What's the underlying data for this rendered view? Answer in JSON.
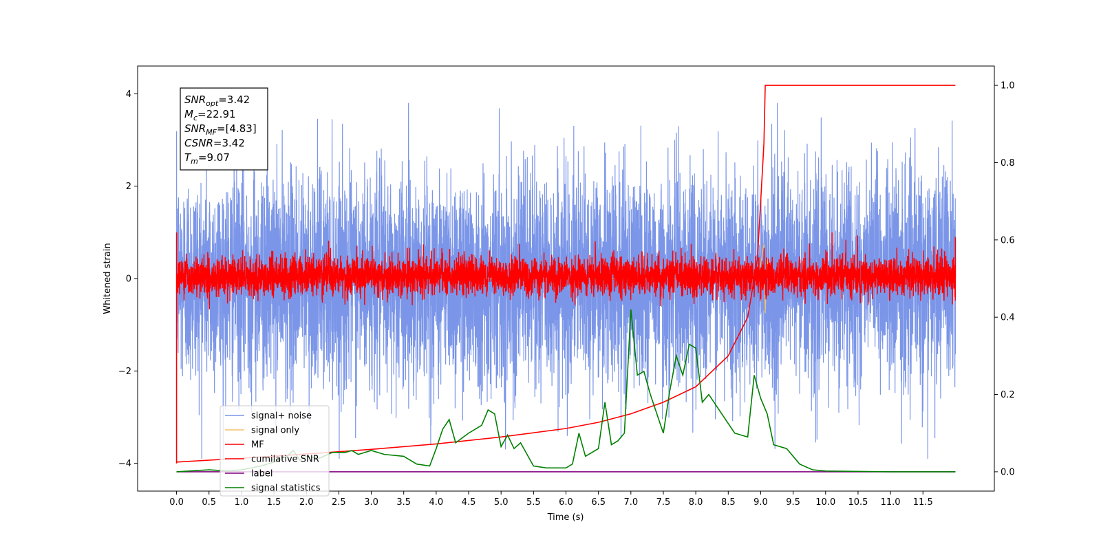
{
  "chart_data": {
    "type": "line",
    "xlabel": "Time (s)",
    "ylabel": "Whitened strain",
    "xlim": [
      -0.6,
      12.6
    ],
    "ylim": [
      -4.6,
      4.6
    ],
    "y2lim": [
      -0.05,
      1.05
    ],
    "x_ticks": [
      0.0,
      0.5,
      1.0,
      1.5,
      2.0,
      2.5,
      3.0,
      3.5,
      4.0,
      4.5,
      5.0,
      5.5,
      6.0,
      6.5,
      7.0,
      7.5,
      8.0,
      8.5,
      9.0,
      9.5,
      10.0,
      10.5,
      11.0,
      11.5
    ],
    "x_tick_labels": [
      "0.0",
      "0.5",
      "1.0",
      "1.5",
      "2.0",
      "2.5",
      "3.0",
      "3.5",
      "4.0",
      "4.5",
      "5.0",
      "5.5",
      "6.0",
      "6.5",
      "7.0",
      "7.5",
      "8.0",
      "8.5",
      "9.0",
      "9.5",
      "10.0",
      "10.5",
      "11.0",
      "11.5"
    ],
    "y_ticks": [
      -4,
      -2,
      0,
      2,
      4
    ],
    "y_tick_labels": [
      "−4",
      "−2",
      "0",
      "2",
      "4"
    ],
    "y2_ticks": [
      0.0,
      0.2,
      0.4,
      0.6,
      0.8,
      1.0
    ],
    "y2_tick_labels": [
      "0.0",
      "0.2",
      "0.4",
      "0.6",
      "0.8",
      "1.0"
    ],
    "legend_placement": "lower-left",
    "grid": false,
    "x_range_data": [
      0.0,
      12.0
    ],
    "noise_series": {
      "name": "signal+ noise",
      "color": "#7b96e8",
      "approx_amplitude_range": [
        -3.9,
        3.8
      ],
      "typical_band": [
        -2.4,
        2.4
      ]
    },
    "signal_only": {
      "name": "signal only",
      "color": "#f5c26b",
      "points": [
        [
          0.0,
          0.0
        ],
        [
          8.9,
          0.0
        ],
        [
          9.0,
          0.3
        ],
        [
          9.05,
          0.75
        ],
        [
          9.07,
          -0.75
        ],
        [
          9.1,
          0.4
        ],
        [
          9.15,
          0.0
        ],
        [
          12.0,
          0.0
        ]
      ]
    },
    "mf_series": {
      "name": "MF",
      "color": "#ff0000",
      "band": [
        -0.35,
        0.45
      ],
      "spikes": [
        [
          0.0,
          1.0
        ],
        [
          0.0,
          -4.0
        ],
        [
          10.1,
          1.0
        ],
        [
          12.0,
          0.9
        ]
      ]
    },
    "cumulative_snr": {
      "name": "cumilative SNR",
      "color": "#ff0000",
      "axis": "right",
      "points": [
        [
          0.0,
          0.025
        ],
        [
          1.0,
          0.035
        ],
        [
          2.0,
          0.046
        ],
        [
          3.0,
          0.058
        ],
        [
          4.0,
          0.072
        ],
        [
          5.0,
          0.09
        ],
        [
          6.0,
          0.112
        ],
        [
          6.5,
          0.128
        ],
        [
          7.0,
          0.15
        ],
        [
          7.5,
          0.18
        ],
        [
          8.0,
          0.22
        ],
        [
          8.5,
          0.3
        ],
        [
          8.8,
          0.4
        ],
        [
          8.95,
          0.55
        ],
        [
          9.0,
          0.7
        ],
        [
          9.05,
          0.85
        ],
        [
          9.07,
          1.0
        ],
        [
          12.0,
          1.0
        ]
      ]
    },
    "label_series": {
      "name": "label",
      "color": "#800080",
      "axis": "right",
      "points": [
        [
          0.0,
          0.0
        ],
        [
          12.0,
          0.0
        ]
      ]
    },
    "signal_statistics": {
      "name": "signal statistics",
      "color": "#008000",
      "axis": "right",
      "points": [
        [
          0.0,
          0.0
        ],
        [
          0.3,
          0.003
        ],
        [
          0.5,
          0.005
        ],
        [
          0.8,
          0.002
        ],
        [
          1.0,
          0.005
        ],
        [
          1.3,
          0.015
        ],
        [
          1.5,
          0.025
        ],
        [
          1.7,
          0.04
        ],
        [
          1.8,
          0.055
        ],
        [
          1.9,
          0.03
        ],
        [
          2.0,
          0.04
        ],
        [
          2.2,
          0.035
        ],
        [
          2.4,
          0.05
        ],
        [
          2.6,
          0.05
        ],
        [
          2.7,
          0.055
        ],
        [
          2.8,
          0.045
        ],
        [
          3.0,
          0.055
        ],
        [
          3.2,
          0.045
        ],
        [
          3.5,
          0.04
        ],
        [
          3.7,
          0.02
        ],
        [
          3.9,
          0.015
        ],
        [
          4.0,
          0.06
        ],
        [
          4.1,
          0.11
        ],
        [
          4.2,
          0.135
        ],
        [
          4.3,
          0.075
        ],
        [
          4.5,
          0.1
        ],
        [
          4.7,
          0.12
        ],
        [
          4.8,
          0.16
        ],
        [
          4.9,
          0.15
        ],
        [
          5.0,
          0.065
        ],
        [
          5.1,
          0.095
        ],
        [
          5.2,
          0.06
        ],
        [
          5.3,
          0.075
        ],
        [
          5.5,
          0.015
        ],
        [
          5.7,
          0.01
        ],
        [
          6.0,
          0.01
        ],
        [
          6.1,
          0.02
        ],
        [
          6.2,
          0.1
        ],
        [
          6.3,
          0.04
        ],
        [
          6.5,
          0.06
        ],
        [
          6.6,
          0.18
        ],
        [
          6.7,
          0.07
        ],
        [
          6.8,
          0.08
        ],
        [
          6.9,
          0.1
        ],
        [
          7.0,
          0.42
        ],
        [
          7.1,
          0.25
        ],
        [
          7.2,
          0.26
        ],
        [
          7.3,
          0.2
        ],
        [
          7.5,
          0.1
        ],
        [
          7.6,
          0.21
        ],
        [
          7.7,
          0.3
        ],
        [
          7.8,
          0.25
        ],
        [
          7.9,
          0.33
        ],
        [
          8.0,
          0.32
        ],
        [
          8.1,
          0.18
        ],
        [
          8.2,
          0.2
        ],
        [
          8.4,
          0.15
        ],
        [
          8.6,
          0.1
        ],
        [
          8.8,
          0.09
        ],
        [
          8.9,
          0.25
        ],
        [
          9.0,
          0.19
        ],
        [
          9.1,
          0.15
        ],
        [
          9.2,
          0.07
        ],
        [
          9.4,
          0.06
        ],
        [
          9.6,
          0.02
        ],
        [
          9.8,
          0.005
        ],
        [
          10.0,
          0.002
        ],
        [
          11.0,
          0.0
        ],
        [
          12.0,
          0.0
        ]
      ]
    },
    "stats_box": {
      "lines": [
        {
          "sym": "SNR",
          "sub": "opt",
          "value": "=3.42"
        },
        {
          "sym": "M",
          "sub": "c",
          "value": "=22.91"
        },
        {
          "sym": "SNR",
          "sub": "MF",
          "value": "=[4.83]"
        },
        {
          "sym": "CSNR",
          "sub": "",
          "value": "=3.42"
        },
        {
          "sym": "T",
          "sub": "m",
          "value": "=9.07"
        }
      ]
    },
    "legend": [
      {
        "label": "signal+ noise",
        "color": "#7b96e8"
      },
      {
        "label": "signal only",
        "color": "#f5c26b"
      },
      {
        "label": "MF",
        "color": "#ff0000"
      },
      {
        "label": "cumilative SNR",
        "color": "#ff0000"
      },
      {
        "label": "label",
        "color": "#800080"
      },
      {
        "label": "signal statistics",
        "color": "#008000"
      }
    ]
  }
}
